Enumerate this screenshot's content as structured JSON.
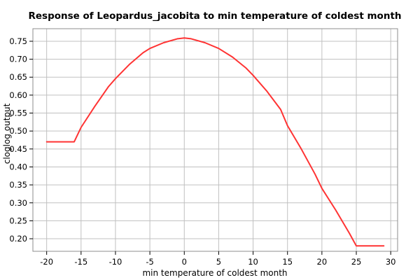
{
  "chart_data": {
    "type": "line",
    "title": "Response of Leopardus_jacobita to min temperature of coldest month",
    "xlabel": "min temperature of coldest month",
    "ylabel": "cloglog output",
    "xlim": [
      -22,
      31
    ],
    "ylim": [
      0.165,
      0.785
    ],
    "x_ticks": [
      -20,
      -15,
      -10,
      -5,
      0,
      5,
      10,
      15,
      20,
      25,
      30
    ],
    "y_ticks": [
      0.2,
      0.25,
      0.3,
      0.35,
      0.4,
      0.45,
      0.5,
      0.55,
      0.6,
      0.65,
      0.7,
      0.75
    ],
    "grid": true,
    "series_color": "#ff3333",
    "series": [
      {
        "x": [
          -20,
          -16,
          -15,
          -13,
          -11,
          -10,
          -8,
          -6,
          -5,
          -3,
          -1,
          0,
          1,
          3,
          5,
          7,
          9,
          10,
          12,
          14,
          15,
          17,
          19,
          20,
          22,
          24,
          25,
          29
        ],
        "y": [
          0.47,
          0.47,
          0.51,
          0.569,
          0.624,
          0.646,
          0.685,
          0.718,
          0.73,
          0.746,
          0.757,
          0.759,
          0.757,
          0.746,
          0.73,
          0.706,
          0.675,
          0.655,
          0.611,
          0.56,
          0.515,
          0.45,
          0.38,
          0.34,
          0.28,
          0.215,
          0.18,
          0.18
        ]
      }
    ]
  }
}
